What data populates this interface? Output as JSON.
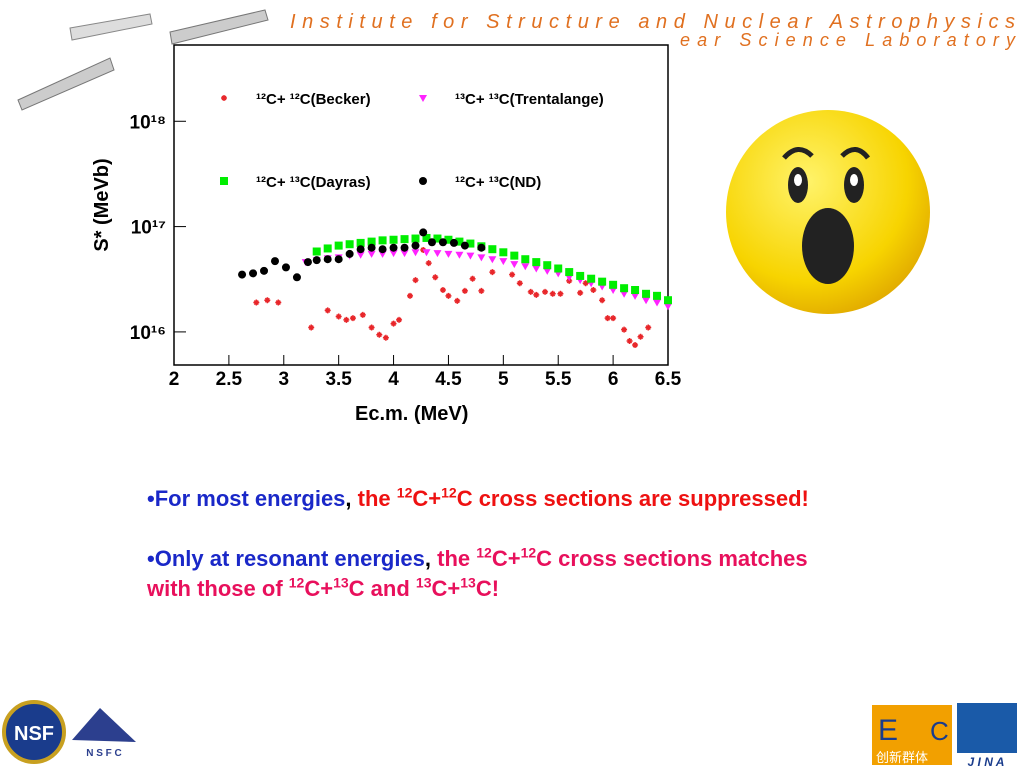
{
  "header": {
    "title": "Institute for Structure and Nuclear Astrophysics",
    "subtitle": "ear Science Laboratory"
  },
  "chart_data": {
    "type": "scatter",
    "log_y": true,
    "grid": false,
    "x_label": "Ec.m. (MeV)",
    "y_label": "S* (MeVb)",
    "xlim": [
      2,
      6.5
    ],
    "xticks": [
      2,
      2.5,
      3,
      3.5,
      4,
      4.5,
      5,
      5.5,
      6,
      6.5
    ],
    "ylim": [
      4850000000000000.0,
      5.3e+18
    ],
    "yticks": [
      {
        "value": 1e+16,
        "label": "10¹⁶"
      },
      {
        "value": 1e+17,
        "label": "10¹⁷"
      },
      {
        "value": 1e+18,
        "label": "10¹⁸"
      }
    ],
    "series": [
      {
        "name": "¹²C+ ¹²C(Becker)",
        "color": "#e8262a",
        "marker": "star",
        "x": [
          2.75,
          2.85,
          2.95,
          3.25,
          3.4,
          3.5,
          3.57,
          3.63,
          3.72,
          3.8,
          3.87,
          3.93,
          4.0,
          4.05,
          4.15,
          4.2,
          4.27,
          4.32,
          4.38,
          4.45,
          4.5,
          4.58,
          4.65,
          4.72,
          4.8,
          4.9,
          5.0,
          5.08,
          5.15,
          5.25,
          5.3,
          5.38,
          5.45,
          5.52,
          5.6,
          5.7,
          5.75,
          5.82,
          5.9,
          5.95,
          6.0,
          6.1,
          6.15,
          6.2,
          6.25,
          6.32
        ],
        "values": [
          1.9e+16,
          2e+16,
          1.9e+16,
          1.1e+16,
          1.6e+16,
          1.4e+16,
          1.3e+16,
          1.35e+16,
          1.45e+16,
          1.1e+16,
          9400000000000000.0,
          8800000000000000.0,
          1.2e+16,
          1.3e+16,
          2.2e+16,
          3.1e+16,
          6e+16,
          4.5e+16,
          3.3e+16,
          2.5e+16,
          2.2e+16,
          1.97e+16,
          2.45e+16,
          3.2e+16,
          2.45e+16,
          3.7e+16,
          5.8e+16,
          3.5e+16,
          2.9e+16,
          2.4e+16,
          2.25e+16,
          2.4e+16,
          2.3e+16,
          2.3e+16,
          3.05e+16,
          2.35e+16,
          2.9e+16,
          2.5e+16,
          2e+16,
          1.35e+16,
          1.35e+16,
          1.05e+16,
          8200000000000000.0,
          7500000000000000.0,
          9000000000000000.0,
          1.1e+16
        ]
      },
      {
        "name": "¹³C+ ¹³C(Trentalange)",
        "color": "#ff22ff",
        "marker": "triangle",
        "x": [
          3.2,
          3.3,
          3.4,
          3.5,
          3.6,
          3.7,
          3.8,
          3.9,
          4.0,
          4.1,
          4.2,
          4.3,
          4.4,
          4.5,
          4.6,
          4.7,
          4.8,
          4.9,
          5.0,
          5.1,
          5.2,
          5.3,
          5.4,
          5.5,
          5.6,
          5.7,
          5.8,
          5.9,
          6.0,
          6.1,
          6.2,
          6.3,
          6.4,
          6.5
        ],
        "values": [
          4.6e+16,
          4.8e+16,
          5e+16,
          5.1e+16,
          5.3e+16,
          5.4e+16,
          5.5e+16,
          5.5e+16,
          5.6e+16,
          5.6e+16,
          5.7e+16,
          5.7e+16,
          5.6e+16,
          5.5e+16,
          5.4e+16,
          5.3e+16,
          5.1e+16,
          4.9e+16,
          4.7e+16,
          4.4e+16,
          4.2e+16,
          4e+16,
          3.8e+16,
          3.6e+16,
          3.3e+16,
          3.1e+16,
          2.9e+16,
          2.7e+16,
          2.5e+16,
          2.3e+16,
          2.2e+16,
          2e+16,
          1.9e+16,
          1.75e+16
        ]
      },
      {
        "name": "¹²C+ ¹³C(Dayras)",
        "color": "#00ee00",
        "marker": "square",
        "x": [
          3.3,
          3.4,
          3.5,
          3.6,
          3.7,
          3.8,
          3.9,
          4.0,
          4.1,
          4.2,
          4.3,
          4.4,
          4.5,
          4.6,
          4.7,
          4.8,
          4.9,
          5.0,
          5.1,
          5.2,
          5.3,
          5.4,
          5.5,
          5.6,
          5.7,
          5.8,
          5.9,
          6.0,
          6.1,
          6.2,
          6.3,
          6.4,
          6.5
        ],
        "values": [
          5.8e+16,
          6.2e+16,
          6.6e+16,
          6.8e+16,
          7e+16,
          7.2e+16,
          7.4e+16,
          7.5e+16,
          7.6e+16,
          7.7e+16,
          7.8e+16,
          7.7e+16,
          7.5e+16,
          7.2e+16,
          6.9e+16,
          6.5e+16,
          6.1e+16,
          5.7e+16,
          5.3e+16,
          4.9e+16,
          4.6e+16,
          4.3e+16,
          4e+16,
          3.7e+16,
          3.4e+16,
          3.2e+16,
          3e+16,
          2.8e+16,
          2.6e+16,
          2.5e+16,
          2.3e+16,
          2.2e+16,
          2e+16
        ]
      },
      {
        "name": "¹²C+ ¹³C(ND)",
        "color": "#000000",
        "marker": "circle",
        "x": [
          2.62,
          2.72,
          2.82,
          2.92,
          3.02,
          3.12,
          3.22,
          3.3,
          3.4,
          3.5,
          3.6,
          3.7,
          3.8,
          3.9,
          4.0,
          4.1,
          4.2,
          4.27,
          4.35,
          4.45,
          4.55,
          4.65,
          4.8
        ],
        "values": [
          3.5e+16,
          3.6e+16,
          3.8e+16,
          4.7e+16,
          4.1e+16,
          3.3e+16,
          4.6e+16,
          4.8e+16,
          4.9e+16,
          4.9e+16,
          5.5e+16,
          6.1e+16,
          6.3e+16,
          6.1e+16,
          6.3e+16,
          6.3e+16,
          6.6e+16,
          8.8e+16,
          7.1e+16,
          7.1e+16,
          7e+16,
          6.6e+16,
          6.3e+16
        ]
      }
    ]
  },
  "bullets": [
    [
      {
        "text": "•For most energies",
        "color": "#1a28c8"
      },
      {
        "text": ", ",
        "color": "#000000"
      },
      {
        "text": "the ",
        "color": "#ee1111"
      },
      {
        "text": "12",
        "color": "#ee1111",
        "sup": true
      },
      {
        "text": "C+",
        "color": "#ee1111"
      },
      {
        "text": "12",
        "color": "#ee1111",
        "sup": true
      },
      {
        "text": "C cross sections are suppressed!",
        "color": "#ee1111"
      }
    ],
    [
      {
        "text": "•Only at resonant energies",
        "color": "#1a28c8"
      },
      {
        "text": ", ",
        "color": "#000000"
      },
      {
        "text": "the ",
        "color": "#e8105c"
      },
      {
        "text": "12",
        "color": "#e8105c",
        "sup": true
      },
      {
        "text": "C+",
        "color": "#e8105c"
      },
      {
        "text": "12",
        "color": "#e8105c",
        "sup": true
      },
      {
        "text": "C cross sections matches with those of ",
        "color": "#e8105c"
      },
      {
        "text": "12",
        "color": "#e8105c",
        "sup": true
      },
      {
        "text": "C+",
        "color": "#e8105c"
      },
      {
        "text": "13",
        "color": "#e8105c",
        "sup": true
      },
      {
        "text": "C and ",
        "color": "#e8105c"
      },
      {
        "text": "13",
        "color": "#e8105c",
        "sup": true
      },
      {
        "text": "C+",
        "color": "#e8105c"
      },
      {
        "text": "13",
        "color": "#e8105c",
        "sup": true
      },
      {
        "text": "C!",
        "color": "#e8105c"
      }
    ]
  ],
  "logos": [
    "NSF",
    "N S F C",
    "E",
    "C",
    "创新群体",
    "J I N A"
  ]
}
